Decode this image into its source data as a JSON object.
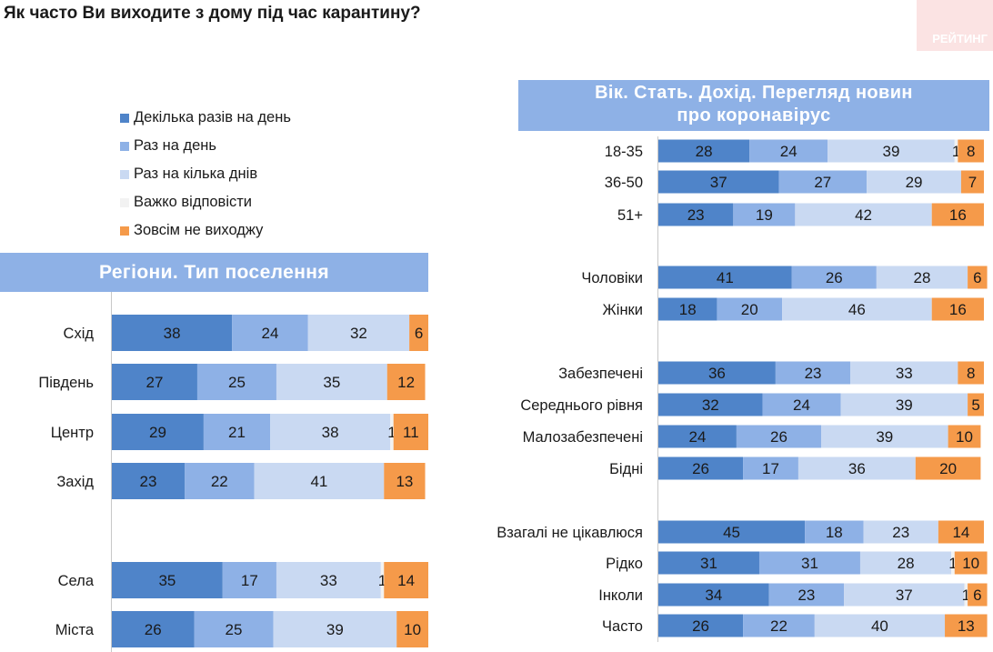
{
  "question": "Як часто Ви виходите з дому під час карантину?",
  "brand": "РЕЙТИНГ",
  "legend": [
    {
      "label": "Декілька разів на день",
      "color": "#4f84c9"
    },
    {
      "label": "Раз на день",
      "color": "#8eb1e6"
    },
    {
      "label": "Раз на кілька днів",
      "color": "#c9d9f2"
    },
    {
      "label": "Важко відповісти",
      "color": "#f2f2f2"
    },
    {
      "label": "Зовсім не виходжу",
      "color": "#f59a4a"
    }
  ],
  "panels": {
    "left_title": "Регіони. Тип поселення",
    "right_title_line1": "Вік. Стать. Дохід. Перегляд новин",
    "right_title_line2": "про коронавірус"
  },
  "chart_data": [
    {
      "type": "bar",
      "orientation": "horizontal",
      "stacked": true,
      "title": "Регіони. Тип поселення",
      "series_names": [
        "Декілька разів на день",
        "Раз на день",
        "Раз на кілька днів",
        "Важко відповісти",
        "Зовсім не виходжу"
      ],
      "rows": [
        {
          "label": "Схід",
          "values": [
            38,
            24,
            32,
            0,
            6
          ]
        },
        {
          "label": "Південь",
          "values": [
            27,
            25,
            35,
            0,
            12
          ]
        },
        {
          "label": "Центр",
          "values": [
            29,
            21,
            38,
            1,
            11
          ]
        },
        {
          "label": "Захід",
          "values": [
            23,
            22,
            41,
            0,
            13
          ]
        },
        {
          "label": "Села",
          "values": [
            35,
            17,
            33,
            1,
            14
          ]
        },
        {
          "label": "Міста",
          "values": [
            26,
            25,
            39,
            0,
            10
          ]
        }
      ]
    },
    {
      "type": "bar",
      "orientation": "horizontal",
      "stacked": true,
      "title": "Вік. Стать. Дохід. Перегляд новин про коронавірус",
      "series_names": [
        "Декілька разів на день",
        "Раз на день",
        "Раз на кілька днів",
        "Важко відповісти",
        "Зовсім не виходжу"
      ],
      "rows": [
        {
          "label": "18-35",
          "values": [
            28,
            24,
            39,
            1,
            8
          ]
        },
        {
          "label": "36-50",
          "values": [
            37,
            27,
            29,
            0,
            7
          ]
        },
        {
          "label": "51+",
          "values": [
            23,
            19,
            42,
            0,
            16
          ]
        },
        {
          "label": "Чоловіки",
          "values": [
            41,
            26,
            28,
            0,
            6
          ]
        },
        {
          "label": "Жінки",
          "values": [
            18,
            20,
            46,
            0,
            16
          ]
        },
        {
          "label": "Забезпечені",
          "values": [
            36,
            23,
            33,
            0,
            8
          ]
        },
        {
          "label": "Середнього рівня",
          "values": [
            32,
            24,
            39,
            0,
            5
          ]
        },
        {
          "label": "Малозабезпечені",
          "values": [
            24,
            26,
            39,
            0,
            10
          ]
        },
        {
          "label": "Бідні",
          "values": [
            26,
            17,
            36,
            0,
            20
          ]
        },
        {
          "label": "Взагалі не цікавлюся",
          "values": [
            45,
            18,
            23,
            0,
            14
          ]
        },
        {
          "label": "Рідко",
          "values": [
            31,
            31,
            28,
            1,
            10
          ]
        },
        {
          "label": "Інколи",
          "values": [
            34,
            23,
            37,
            1,
            6
          ]
        },
        {
          "label": "Часто",
          "values": [
            26,
            22,
            40,
            0,
            13
          ]
        }
      ]
    }
  ]
}
